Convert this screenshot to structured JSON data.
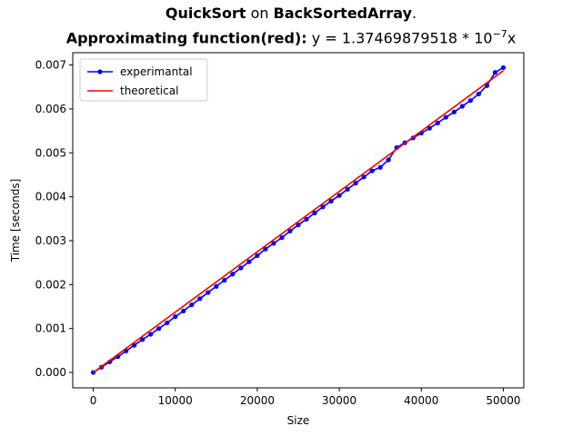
{
  "chart_data": {
    "type": "line",
    "title": {
      "line1": {
        "algo": "QuickSort",
        "on": " on ",
        "array": "BackSortedArray",
        "end": "."
      },
      "line2": {
        "bold": "Approximating function(red)",
        "colon": ":",
        "formula_prefix": " y = 1.37469879518 * 10",
        "exponent": "−7",
        "formula_suffix": "x"
      }
    },
    "xlabel": "Size",
    "ylabel": "Time [seconds]",
    "xlim": [
      -2500,
      52500
    ],
    "ylim": [
      -0.00035,
      0.00728
    ],
    "xticks": [
      0,
      10000,
      20000,
      30000,
      40000,
      50000
    ],
    "xtick_labels": [
      "0",
      "10000",
      "20000",
      "30000",
      "40000",
      "50000"
    ],
    "yticks": [
      0,
      0.001,
      0.002,
      0.003,
      0.004,
      0.005,
      0.006,
      0.007
    ],
    "ytick_labels": [
      "0.000",
      "0.001",
      "0.002",
      "0.003",
      "0.004",
      "0.005",
      "0.006",
      "0.007"
    ],
    "legend_position": "top-left",
    "grid": false,
    "series": [
      {
        "name": "experimantal",
        "color": "#0000ff",
        "style": "line-dot",
        "x": [
          0,
          1000,
          2000,
          3000,
          4000,
          5000,
          6000,
          7000,
          8000,
          9000,
          10000,
          11000,
          12000,
          13000,
          14000,
          15000,
          16000,
          17000,
          18000,
          19000,
          20000,
          21000,
          22000,
          23000,
          24000,
          25000,
          26000,
          27000,
          28000,
          29000,
          30000,
          31000,
          32000,
          33000,
          34000,
          35000,
          36000,
          37000,
          38000,
          39000,
          40000,
          41000,
          42000,
          43000,
          44000,
          45000,
          46000,
          47000,
          48000,
          49000,
          50000
        ],
        "y": [
          0.0,
          0.00012,
          0.00024,
          0.00036,
          0.00049,
          0.00062,
          0.00075,
          0.00087,
          0.001,
          0.00113,
          0.00127,
          0.0014,
          0.00154,
          0.00168,
          0.00182,
          0.00196,
          0.0021,
          0.00224,
          0.00238,
          0.00252,
          0.00266,
          0.00281,
          0.00294,
          0.00307,
          0.00322,
          0.00336,
          0.00349,
          0.00363,
          0.00377,
          0.0039,
          0.00403,
          0.00417,
          0.00431,
          0.00445,
          0.00459,
          0.00467,
          0.00484,
          0.00512,
          0.00523,
          0.00534,
          0.00545,
          0.00556,
          0.00568,
          0.00581,
          0.00593,
          0.00606,
          0.00619,
          0.00634,
          0.00653,
          0.00683,
          0.00694
        ]
      },
      {
        "name": "theoretical",
        "color": "#ff0000",
        "style": "line",
        "x": [
          0,
          50000
        ],
        "y": [
          0.0,
          0.00687
        ]
      }
    ]
  }
}
